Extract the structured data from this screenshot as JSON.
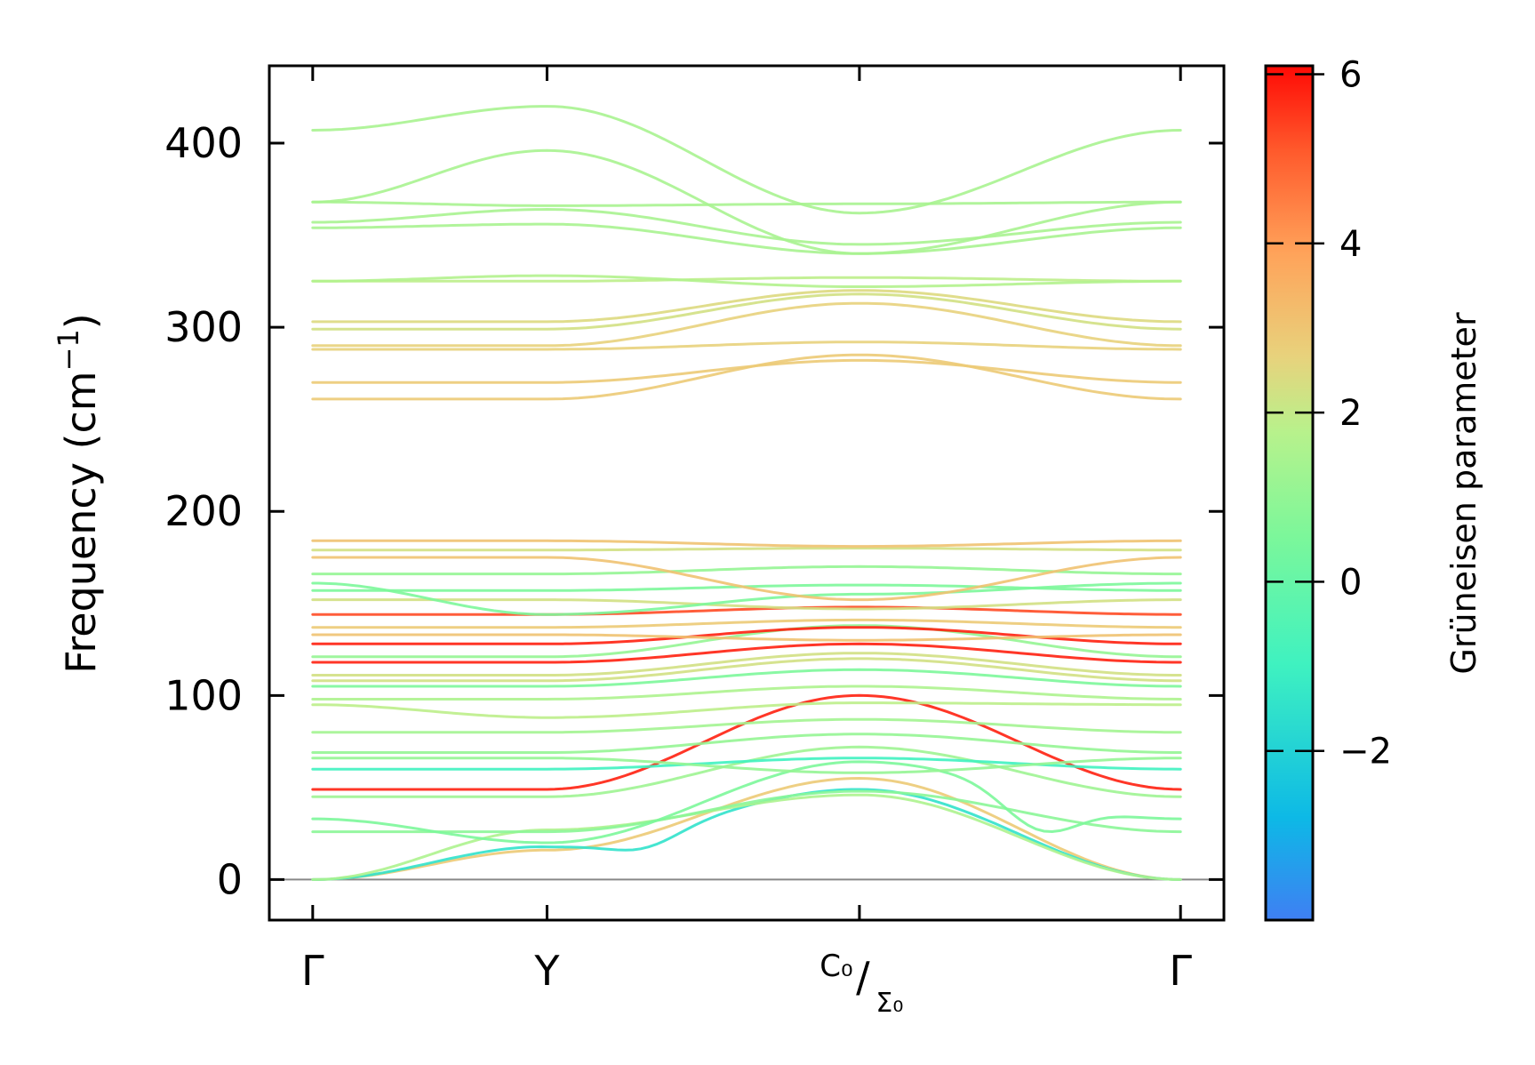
{
  "chart_data": {
    "type": "line",
    "title": "",
    "xlabel": "",
    "ylabel": "Frequency (cm⁻¹)",
    "ylim": [
      -22,
      442
    ],
    "yticks": [
      0,
      100,
      200,
      300,
      400
    ],
    "ytick_labels": [
      "0",
      "100",
      "200",
      "300",
      "400"
    ],
    "x_points": [
      {
        "label": "Γ",
        "x": 0
      },
      {
        "label": "Y",
        "x": 0.27
      },
      {
        "label": "C₀/Σ₀",
        "x": 0.63
      },
      {
        "label": "Γ",
        "x": 1.0
      }
    ],
    "xlim": [
      -0.05,
      1.05
    ],
    "zero_line": 0,
    "colorbar": {
      "title": "Grüneisen parameter",
      "range": [
        -4,
        6.1
      ],
      "ticks": [
        -2,
        0,
        2,
        4,
        6
      ],
      "tick_labels": [
        "−2",
        "0",
        "2",
        "4",
        "6"
      ],
      "colormap": "rainbow"
    },
    "series": [
      {
        "name": "band-acoustic-1",
        "g": 2.8,
        "values": [
          0,
          16,
          55,
          0
        ],
        "dip": 0,
        "extra": []
      },
      {
        "name": "band-acoustic-2",
        "g": -1.5,
        "values": [
          0,
          18,
          49,
          0
        ],
        "dip": 0,
        "extra": [
          [
            0.36,
            16,
            -3.5
          ]
        ]
      },
      {
        "name": "band-acoustic-3",
        "g": 1.5,
        "values": [
          0,
          27,
          46,
          0
        ],
        "dip": 0,
        "extra": []
      },
      {
        "name": "band-5",
        "g": 0.8,
        "values": [
          26,
          26,
          48,
          26
        ],
        "dip": 0,
        "extra": []
      },
      {
        "name": "band-6",
        "g": 0.5,
        "values": [
          33,
          20,
          64,
          33
        ],
        "dip": 0,
        "extra": [
          [
            0.85,
            26,
            0
          ]
        ]
      },
      {
        "name": "band-7",
        "g": 5.8,
        "values": [
          49,
          49,
          100,
          49
        ],
        "dip": 0,
        "extra": []
      },
      {
        "name": "band-8",
        "g": 1.2,
        "values": [
          45,
          45,
          72,
          45
        ],
        "dip": 0,
        "extra": []
      },
      {
        "name": "band-9",
        "g": -1.0,
        "values": [
          60,
          60,
          66,
          60
        ],
        "dip": 0,
        "extra": []
      },
      {
        "name": "band-10",
        "g": 1.0,
        "values": [
          66,
          66,
          58,
          66
        ],
        "dip": 0,
        "extra": []
      },
      {
        "name": "band-11",
        "g": 1.0,
        "values": [
          69,
          69,
          79,
          69
        ],
        "dip": 0,
        "extra": []
      },
      {
        "name": "band-12",
        "g": 1.3,
        "values": [
          80,
          80,
          87,
          80
        ],
        "dip": 0,
        "extra": []
      },
      {
        "name": "band-13",
        "g": 1.8,
        "values": [
          95,
          88,
          96,
          95
        ],
        "dip": 0,
        "extra": []
      },
      {
        "name": "band-14",
        "g": 1.5,
        "values": [
          98,
          98,
          105,
          98
        ],
        "dip": 0,
        "extra": []
      },
      {
        "name": "band-15",
        "g": 0.5,
        "values": [
          105,
          105,
          114,
          105
        ],
        "dip": 0,
        "extra": []
      },
      {
        "name": "band-16",
        "g": 2.2,
        "values": [
          108,
          108,
          120,
          108
        ],
        "dip": 0,
        "extra": []
      },
      {
        "name": "band-17",
        "g": 2.2,
        "values": [
          111,
          111,
          123,
          111
        ],
        "dip": 0,
        "extra": []
      },
      {
        "name": "band-18",
        "g": 5.8,
        "values": [
          118,
          118,
          128,
          118
        ],
        "dip": 0,
        "extra": []
      },
      {
        "name": "band-19",
        "g": 1.0,
        "values": [
          121,
          121,
          138,
          121
        ],
        "dip": 0,
        "extra": []
      },
      {
        "name": "band-20",
        "g": 5.8,
        "values": [
          128,
          128,
          137,
          128
        ],
        "dip": 0,
        "extra": []
      },
      {
        "name": "band-21",
        "g": 3.0,
        "values": [
          133,
          133,
          130,
          133
        ],
        "dip": 0,
        "extra": []
      },
      {
        "name": "band-22",
        "g": 2.8,
        "values": [
          137,
          137,
          141,
          137
        ],
        "dip": 0,
        "extra": []
      },
      {
        "name": "band-23",
        "g": 5.2,
        "values": [
          144,
          144,
          148,
          144
        ],
        "dip": 0,
        "extra": []
      },
      {
        "name": "band-24",
        "g": 2.2,
        "values": [
          152,
          152,
          147,
          152
        ],
        "dip": 0,
        "extra": []
      },
      {
        "name": "band-25",
        "g": 0.5,
        "values": [
          157,
          157,
          160,
          157
        ],
        "dip": 0,
        "extra": []
      },
      {
        "name": "band-26",
        "g": 0.5,
        "values": [
          161,
          144,
          155,
          161
        ],
        "dip": 0,
        "extra": []
      },
      {
        "name": "band-27",
        "g": 1.0,
        "values": [
          166,
          166,
          170,
          166
        ],
        "dip": 0,
        "extra": []
      },
      {
        "name": "band-28",
        "g": 3.0,
        "values": [
          175,
          175,
          152,
          175
        ],
        "dip": 0,
        "extra": []
      },
      {
        "name": "band-29",
        "g": 2.2,
        "values": [
          179,
          179,
          180,
          179
        ],
        "dip": 0,
        "extra": []
      },
      {
        "name": "band-30",
        "g": 3.0,
        "values": [
          184,
          184,
          181,
          184
        ],
        "dip": 0,
        "extra": []
      },
      {
        "name": "band-31",
        "g": 2.8,
        "values": [
          261,
          261,
          285,
          261
        ],
        "dip": 0,
        "extra": []
      },
      {
        "name": "band-32",
        "g": 2.8,
        "values": [
          270,
          270,
          282,
          270
        ],
        "dip": 0,
        "extra": []
      },
      {
        "name": "band-33",
        "g": 2.6,
        "values": [
          288,
          288,
          292,
          288
        ],
        "dip": 0,
        "extra": []
      },
      {
        "name": "band-34",
        "g": 2.6,
        "values": [
          290,
          290,
          313,
          290
        ],
        "dip": 0,
        "extra": []
      },
      {
        "name": "band-35",
        "g": 2.2,
        "values": [
          299,
          299,
          318,
          299
        ],
        "dip": 0,
        "extra": []
      },
      {
        "name": "band-36",
        "g": 2.4,
        "values": [
          303,
          303,
          320,
          303
        ],
        "dip": 0,
        "extra": []
      },
      {
        "name": "band-37",
        "g": 1.8,
        "values": [
          325,
          325,
          327,
          325
        ],
        "dip": 0,
        "extra": []
      },
      {
        "name": "band-38",
        "g": 1.6,
        "values": [
          325,
          328,
          322,
          325
        ],
        "dip": 0,
        "extra": []
      },
      {
        "name": "band-39",
        "g": 1.4,
        "values": [
          354,
          356,
          340,
          354
        ],
        "dip": 0,
        "extra": []
      },
      {
        "name": "band-40",
        "g": 1.4,
        "values": [
          357,
          364,
          345,
          357
        ],
        "dip": 0,
        "extra": []
      },
      {
        "name": "band-41",
        "g": 1.4,
        "values": [
          368,
          366,
          367,
          368
        ],
        "dip": 0,
        "extra": []
      },
      {
        "name": "band-42",
        "g": 1.4,
        "values": [
          368,
          396,
          340,
          368
        ],
        "dip": 0,
        "extra": []
      },
      {
        "name": "band-43",
        "g": 1.4,
        "values": [
          407,
          420,
          362,
          407
        ],
        "dip": 0,
        "extra": []
      }
    ]
  }
}
